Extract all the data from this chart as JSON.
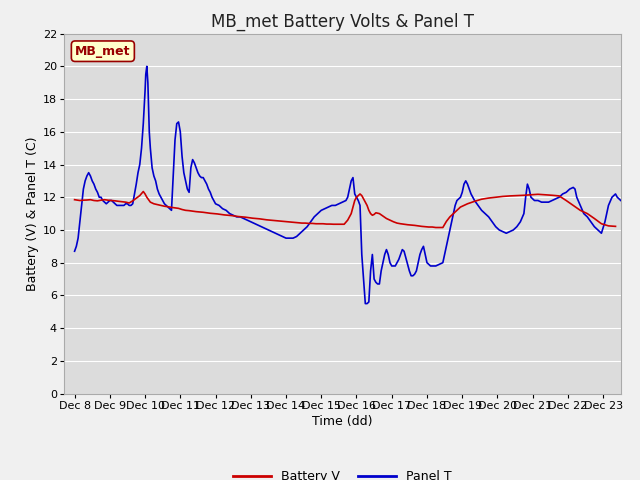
{
  "title": "MB_met Battery Volts & Panel T",
  "xlabel": "Time (dd)",
  "ylabel": "Battery (V) & Panel T (C)",
  "xlim": [
    -0.3,
    15.5
  ],
  "ylim": [
    0,
    22
  ],
  "yticks": [
    0,
    2,
    4,
    6,
    8,
    10,
    12,
    14,
    16,
    18,
    20,
    22
  ],
  "xtick_labels": [
    "Dec 8",
    "Dec 9",
    "Dec 10",
    "Dec 11",
    "Dec 12",
    "Dec 13",
    "Dec 14",
    "Dec 15",
    "Dec 16",
    "Dec 17",
    "Dec 18",
    "Dec 19",
    "Dec 20",
    "Dec 21",
    "Dec 22",
    "Dec 23"
  ],
  "xtick_positions": [
    0,
    1,
    2,
    3,
    4,
    5,
    6,
    7,
    8,
    9,
    10,
    11,
    12,
    13,
    14,
    15
  ],
  "plot_bg_color": "#dcdcdc",
  "fig_bg_color": "#f0f0f0",
  "grid_color": "#ffffff",
  "battery_color": "#cc0000",
  "panel_color": "#0000cc",
  "title_fontsize": 12,
  "axis_label_fontsize": 9,
  "tick_fontsize": 8,
  "legend_fontsize": 9,
  "annotation_text": "MB_met",
  "annotation_color": "#990000",
  "annotation_bg": "#ffffcc",
  "annotation_edge": "#990000",
  "battery_v": [
    [
      0.0,
      11.85
    ],
    [
      0.08,
      11.82
    ],
    [
      0.15,
      11.8
    ],
    [
      0.25,
      11.82
    ],
    [
      0.35,
      11.83
    ],
    [
      0.45,
      11.85
    ],
    [
      0.55,
      11.8
    ],
    [
      0.65,
      11.78
    ],
    [
      0.75,
      11.82
    ],
    [
      0.85,
      11.85
    ],
    [
      0.95,
      11.82
    ],
    [
      1.05,
      11.8
    ],
    [
      1.15,
      11.78
    ],
    [
      1.25,
      11.75
    ],
    [
      1.45,
      11.7
    ],
    [
      1.55,
      11.65
    ],
    [
      1.65,
      11.78
    ],
    [
      1.85,
      12.1
    ],
    [
      1.95,
      12.35
    ],
    [
      2.0,
      12.2
    ],
    [
      2.05,
      12.0
    ],
    [
      2.1,
      11.85
    ],
    [
      2.15,
      11.7
    ],
    [
      2.25,
      11.6
    ],
    [
      2.35,
      11.55
    ],
    [
      2.45,
      11.5
    ],
    [
      2.55,
      11.45
    ],
    [
      2.65,
      11.42
    ],
    [
      2.75,
      11.38
    ],
    [
      2.85,
      11.35
    ],
    [
      2.95,
      11.32
    ],
    [
      3.05,
      11.25
    ],
    [
      3.15,
      11.2
    ],
    [
      3.25,
      11.18
    ],
    [
      3.35,
      11.15
    ],
    [
      3.45,
      11.12
    ],
    [
      3.55,
      11.1
    ],
    [
      3.65,
      11.08
    ],
    [
      3.75,
      11.05
    ],
    [
      3.85,
      11.02
    ],
    [
      3.95,
      11.0
    ],
    [
      4.05,
      10.98
    ],
    [
      4.15,
      10.95
    ],
    [
      4.25,
      10.92
    ],
    [
      4.35,
      10.9
    ],
    [
      4.45,
      10.88
    ],
    [
      4.55,
      10.85
    ],
    [
      4.65,
      10.82
    ],
    [
      4.75,
      10.8
    ],
    [
      4.85,
      10.78
    ],
    [
      4.95,
      10.75
    ],
    [
      5.05,
      10.72
    ],
    [
      5.15,
      10.7
    ],
    [
      5.25,
      10.68
    ],
    [
      5.35,
      10.65
    ],
    [
      5.45,
      10.62
    ],
    [
      5.55,
      10.6
    ],
    [
      5.65,
      10.58
    ],
    [
      5.75,
      10.56
    ],
    [
      5.85,
      10.54
    ],
    [
      5.95,
      10.52
    ],
    [
      6.05,
      10.5
    ],
    [
      6.15,
      10.48
    ],
    [
      6.25,
      10.46
    ],
    [
      6.35,
      10.44
    ],
    [
      6.45,
      10.42
    ],
    [
      6.55,
      10.42
    ],
    [
      6.65,
      10.4
    ],
    [
      6.75,
      10.4
    ],
    [
      6.85,
      10.38
    ],
    [
      6.95,
      10.38
    ],
    [
      7.05,
      10.38
    ],
    [
      7.15,
      10.36
    ],
    [
      7.25,
      10.36
    ],
    [
      7.35,
      10.35
    ],
    [
      7.45,
      10.35
    ],
    [
      7.55,
      10.35
    ],
    [
      7.65,
      10.35
    ],
    [
      7.75,
      10.6
    ],
    [
      7.85,
      11.0
    ],
    [
      7.95,
      11.8
    ],
    [
      8.0,
      12.0
    ],
    [
      8.05,
      12.1
    ],
    [
      8.1,
      12.2
    ],
    [
      8.15,
      12.1
    ],
    [
      8.2,
      11.9
    ],
    [
      8.25,
      11.7
    ],
    [
      8.3,
      11.5
    ],
    [
      8.35,
      11.2
    ],
    [
      8.4,
      11.0
    ],
    [
      8.45,
      10.9
    ],
    [
      8.5,
      10.95
    ],
    [
      8.55,
      11.05
    ],
    [
      8.65,
      11.0
    ],
    [
      8.75,
      10.85
    ],
    [
      8.85,
      10.7
    ],
    [
      8.95,
      10.6
    ],
    [
      9.05,
      10.5
    ],
    [
      9.15,
      10.42
    ],
    [
      9.25,
      10.38
    ],
    [
      9.35,
      10.35
    ],
    [
      9.45,
      10.32
    ],
    [
      9.55,
      10.3
    ],
    [
      9.65,
      10.28
    ],
    [
      9.75,
      10.25
    ],
    [
      9.85,
      10.22
    ],
    [
      9.95,
      10.2
    ],
    [
      10.05,
      10.18
    ],
    [
      10.15,
      10.18
    ],
    [
      10.25,
      10.15
    ],
    [
      10.35,
      10.15
    ],
    [
      10.45,
      10.15
    ],
    [
      10.55,
      10.52
    ],
    [
      10.65,
      10.8
    ],
    [
      10.75,
      11.0
    ],
    [
      10.85,
      11.2
    ],
    [
      10.95,
      11.4
    ],
    [
      11.15,
      11.6
    ],
    [
      11.35,
      11.75
    ],
    [
      11.55,
      11.88
    ],
    [
      11.75,
      11.95
    ],
    [
      11.95,
      12.0
    ],
    [
      12.15,
      12.05
    ],
    [
      12.35,
      12.08
    ],
    [
      12.55,
      12.1
    ],
    [
      12.75,
      12.12
    ],
    [
      12.95,
      12.15
    ],
    [
      13.15,
      12.18
    ],
    [
      13.35,
      12.15
    ],
    [
      13.55,
      12.12
    ],
    [
      13.75,
      12.08
    ],
    [
      13.95,
      11.8
    ],
    [
      14.15,
      11.5
    ],
    [
      14.35,
      11.2
    ],
    [
      14.55,
      11.0
    ],
    [
      14.75,
      10.7
    ],
    [
      14.95,
      10.38
    ],
    [
      15.15,
      10.25
    ],
    [
      15.35,
      10.22
    ]
  ],
  "panel_t": [
    [
      0.0,
      8.7
    ],
    [
      0.05,
      9.0
    ],
    [
      0.1,
      9.5
    ],
    [
      0.15,
      10.5
    ],
    [
      0.2,
      11.5
    ],
    [
      0.25,
      12.5
    ],
    [
      0.3,
      13.0
    ],
    [
      0.35,
      13.3
    ],
    [
      0.4,
      13.5
    ],
    [
      0.45,
      13.3
    ],
    [
      0.5,
      13.0
    ],
    [
      0.55,
      12.8
    ],
    [
      0.6,
      12.5
    ],
    [
      0.65,
      12.3
    ],
    [
      0.7,
      12.0
    ],
    [
      0.75,
      12.0
    ],
    [
      0.8,
      11.8
    ],
    [
      0.85,
      11.7
    ],
    [
      0.9,
      11.6
    ],
    [
      0.95,
      11.7
    ],
    [
      1.0,
      11.8
    ],
    [
      1.05,
      11.8
    ],
    [
      1.1,
      11.7
    ],
    [
      1.15,
      11.6
    ],
    [
      1.2,
      11.5
    ],
    [
      1.25,
      11.5
    ],
    [
      1.3,
      11.5
    ],
    [
      1.35,
      11.5
    ],
    [
      1.4,
      11.5
    ],
    [
      1.45,
      11.6
    ],
    [
      1.5,
      11.6
    ],
    [
      1.55,
      11.5
    ],
    [
      1.6,
      11.5
    ],
    [
      1.65,
      11.6
    ],
    [
      1.7,
      12.2
    ],
    [
      1.75,
      12.8
    ],
    [
      1.8,
      13.5
    ],
    [
      1.85,
      14.0
    ],
    [
      1.9,
      15.0
    ],
    [
      1.95,
      16.5
    ],
    [
      2.0,
      18.5
    ],
    [
      2.02,
      19.5
    ],
    [
      2.05,
      20.0
    ],
    [
      2.08,
      19.0
    ],
    [
      2.1,
      17.5
    ],
    [
      2.12,
      16.0
    ],
    [
      2.15,
      15.0
    ],
    [
      2.2,
      13.8
    ],
    [
      2.25,
      13.3
    ],
    [
      2.3,
      13.0
    ],
    [
      2.35,
      12.5
    ],
    [
      2.4,
      12.2
    ],
    [
      2.45,
      12.0
    ],
    [
      2.5,
      11.8
    ],
    [
      2.55,
      11.6
    ],
    [
      2.6,
      11.5
    ],
    [
      2.65,
      11.4
    ],
    [
      2.7,
      11.3
    ],
    [
      2.75,
      11.2
    ],
    [
      2.8,
      13.3
    ],
    [
      2.85,
      15.5
    ],
    [
      2.9,
      16.5
    ],
    [
      2.95,
      16.6
    ],
    [
      3.0,
      16.0
    ],
    [
      3.05,
      14.5
    ],
    [
      3.1,
      13.5
    ],
    [
      3.15,
      13.0
    ],
    [
      3.2,
      12.5
    ],
    [
      3.25,
      12.3
    ],
    [
      3.3,
      13.8
    ],
    [
      3.35,
      14.3
    ],
    [
      3.4,
      14.1
    ],
    [
      3.45,
      13.8
    ],
    [
      3.5,
      13.5
    ],
    [
      3.55,
      13.3
    ],
    [
      3.6,
      13.2
    ],
    [
      3.65,
      13.2
    ],
    [
      3.7,
      13.0
    ],
    [
      3.75,
      12.8
    ],
    [
      3.8,
      12.5
    ],
    [
      3.85,
      12.3
    ],
    [
      3.9,
      12.0
    ],
    [
      3.95,
      11.8
    ],
    [
      4.0,
      11.6
    ],
    [
      4.1,
      11.5
    ],
    [
      4.2,
      11.3
    ],
    [
      4.3,
      11.2
    ],
    [
      4.4,
      11.0
    ],
    [
      4.5,
      10.9
    ],
    [
      4.6,
      10.8
    ],
    [
      4.7,
      10.8
    ],
    [
      4.8,
      10.7
    ],
    [
      4.9,
      10.6
    ],
    [
      5.0,
      10.5
    ],
    [
      5.1,
      10.4
    ],
    [
      5.2,
      10.3
    ],
    [
      5.3,
      10.2
    ],
    [
      5.4,
      10.1
    ],
    [
      5.5,
      10.0
    ],
    [
      5.6,
      9.9
    ],
    [
      5.7,
      9.8
    ],
    [
      5.8,
      9.7
    ],
    [
      5.9,
      9.6
    ],
    [
      6.0,
      9.5
    ],
    [
      6.1,
      9.5
    ],
    [
      6.2,
      9.5
    ],
    [
      6.3,
      9.6
    ],
    [
      6.4,
      9.8
    ],
    [
      6.5,
      10.0
    ],
    [
      6.6,
      10.2
    ],
    [
      6.7,
      10.5
    ],
    [
      6.8,
      10.8
    ],
    [
      6.9,
      11.0
    ],
    [
      7.0,
      11.2
    ],
    [
      7.1,
      11.3
    ],
    [
      7.2,
      11.4
    ],
    [
      7.3,
      11.5
    ],
    [
      7.4,
      11.5
    ],
    [
      7.5,
      11.6
    ],
    [
      7.6,
      11.7
    ],
    [
      7.7,
      11.8
    ],
    [
      7.75,
      12.0
    ],
    [
      7.8,
      12.5
    ],
    [
      7.85,
      13.0
    ],
    [
      7.9,
      13.2
    ],
    [
      7.95,
      12.2
    ],
    [
      8.0,
      12.0
    ],
    [
      8.05,
      11.8
    ],
    [
      8.1,
      11.5
    ],
    [
      8.15,
      8.5
    ],
    [
      8.2,
      7.0
    ],
    [
      8.25,
      5.5
    ],
    [
      8.3,
      5.5
    ],
    [
      8.35,
      5.6
    ],
    [
      8.4,
      7.5
    ],
    [
      8.45,
      8.5
    ],
    [
      8.5,
      7.0
    ],
    [
      8.55,
      6.8
    ],
    [
      8.6,
      6.7
    ],
    [
      8.65,
      6.7
    ],
    [
      8.7,
      7.5
    ],
    [
      8.75,
      8.0
    ],
    [
      8.8,
      8.5
    ],
    [
      8.85,
      8.8
    ],
    [
      8.9,
      8.5
    ],
    [
      8.95,
      8.0
    ],
    [
      9.0,
      7.8
    ],
    [
      9.05,
      7.8
    ],
    [
      9.1,
      7.8
    ],
    [
      9.15,
      8.0
    ],
    [
      9.2,
      8.2
    ],
    [
      9.25,
      8.5
    ],
    [
      9.3,
      8.8
    ],
    [
      9.35,
      8.7
    ],
    [
      9.4,
      8.3
    ],
    [
      9.45,
      7.9
    ],
    [
      9.5,
      7.5
    ],
    [
      9.55,
      7.2
    ],
    [
      9.6,
      7.2
    ],
    [
      9.65,
      7.3
    ],
    [
      9.7,
      7.5
    ],
    [
      9.75,
      8.0
    ],
    [
      9.8,
      8.5
    ],
    [
      9.85,
      8.8
    ],
    [
      9.9,
      9.0
    ],
    [
      9.95,
      8.5
    ],
    [
      10.0,
      8.0
    ],
    [
      10.05,
      7.9
    ],
    [
      10.1,
      7.8
    ],
    [
      10.15,
      7.8
    ],
    [
      10.25,
      7.8
    ],
    [
      10.35,
      7.9
    ],
    [
      10.45,
      8.0
    ],
    [
      10.5,
      8.5
    ],
    [
      10.55,
      9.0
    ],
    [
      10.6,
      9.5
    ],
    [
      10.65,
      10.0
    ],
    [
      10.7,
      10.5
    ],
    [
      10.75,
      11.0
    ],
    [
      10.8,
      11.5
    ],
    [
      10.85,
      11.8
    ],
    [
      10.95,
      12.0
    ],
    [
      11.0,
      12.3
    ],
    [
      11.05,
      12.8
    ],
    [
      11.1,
      13.0
    ],
    [
      11.15,
      12.8
    ],
    [
      11.2,
      12.5
    ],
    [
      11.25,
      12.2
    ],
    [
      11.3,
      12.0
    ],
    [
      11.35,
      11.8
    ],
    [
      11.45,
      11.5
    ],
    [
      11.55,
      11.2
    ],
    [
      11.65,
      11.0
    ],
    [
      11.75,
      10.8
    ],
    [
      11.85,
      10.5
    ],
    [
      11.95,
      10.2
    ],
    [
      12.05,
      10.0
    ],
    [
      12.15,
      9.9
    ],
    [
      12.25,
      9.8
    ],
    [
      12.35,
      9.9
    ],
    [
      12.45,
      10.0
    ],
    [
      12.55,
      10.2
    ],
    [
      12.65,
      10.5
    ],
    [
      12.75,
      11.0
    ],
    [
      12.8,
      12.0
    ],
    [
      12.85,
      12.8
    ],
    [
      12.9,
      12.5
    ],
    [
      12.95,
      12.0
    ],
    [
      13.05,
      11.8
    ],
    [
      13.15,
      11.8
    ],
    [
      13.25,
      11.7
    ],
    [
      13.35,
      11.7
    ],
    [
      13.45,
      11.7
    ],
    [
      13.55,
      11.8
    ],
    [
      13.65,
      11.9
    ],
    [
      13.75,
      12.0
    ],
    [
      13.85,
      12.2
    ],
    [
      13.95,
      12.3
    ],
    [
      14.05,
      12.5
    ],
    [
      14.15,
      12.6
    ],
    [
      14.2,
      12.5
    ],
    [
      14.25,
      12.0
    ],
    [
      14.35,
      11.5
    ],
    [
      14.45,
      11.0
    ],
    [
      14.55,
      10.8
    ],
    [
      14.65,
      10.5
    ],
    [
      14.75,
      10.2
    ],
    [
      14.85,
      10.0
    ],
    [
      14.95,
      9.8
    ],
    [
      15.05,
      10.5
    ],
    [
      15.15,
      11.5
    ],
    [
      15.25,
      12.0
    ],
    [
      15.35,
      12.2
    ],
    [
      15.4,
      12.0
    ],
    [
      15.5,
      11.8
    ]
  ]
}
